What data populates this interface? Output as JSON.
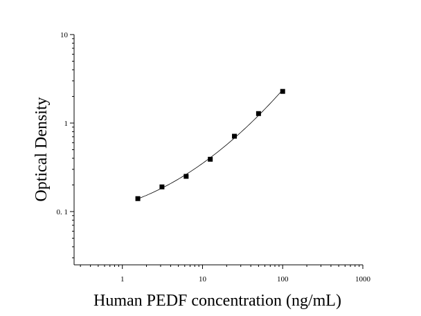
{
  "chart_data": {
    "type": "scatter",
    "xlabel": "Human PEDF concentration (ng/mL)",
    "ylabel": "Optical Density",
    "x_scale": "log",
    "y_scale": "log",
    "xlim": [
      0.25,
      1000
    ],
    "ylim": [
      0.025,
      10
    ],
    "x_ticks": [
      {
        "value": 1,
        "label": "1"
      },
      {
        "value": 10,
        "label": "10"
      },
      {
        "value": 100,
        "label": "100"
      },
      {
        "value": 1000,
        "label": "1000"
      }
    ],
    "y_ticks": [
      {
        "value": 0.1,
        "label": "0. 1"
      },
      {
        "value": 1,
        "label": "1"
      },
      {
        "value": 10,
        "label": "10"
      }
    ],
    "points": [
      {
        "x": 1.56,
        "y": 0.14
      },
      {
        "x": 3.12,
        "y": 0.19
      },
      {
        "x": 6.25,
        "y": 0.25
      },
      {
        "x": 12.5,
        "y": 0.39
      },
      {
        "x": 25,
        "y": 0.71
      },
      {
        "x": 50,
        "y": 1.28
      },
      {
        "x": 100,
        "y": 2.28
      }
    ],
    "fit_curve": true,
    "grid": false,
    "colors": {
      "points": "#000000",
      "curve": "#000000",
      "axis": "#000000"
    }
  }
}
